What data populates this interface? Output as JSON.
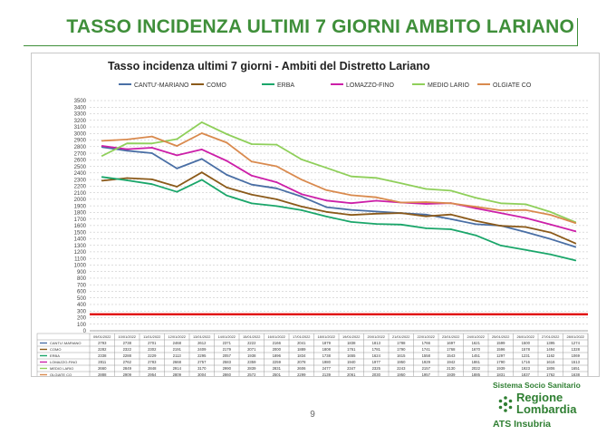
{
  "slide": {
    "title": "TASSO INCIDENZA ULTIMI 7 GIORNI AMBITO LARIANO",
    "page_number": "9",
    "logo": {
      "top": "Sistema Socio Sanitario",
      "region_line1": "Regione",
      "region_line2": "Lombardia",
      "agency": "ATS Insubria"
    }
  },
  "chart_data": {
    "type": "line",
    "title": "Tasso incidenza ultimi 7 giorni - Ambiti del Distretto Lariano",
    "ylim": [
      0,
      3500
    ],
    "ytick_step": 100,
    "grid": true,
    "legend_position": "top",
    "threshold": {
      "value": 250,
      "color": "#e00000"
    },
    "categories": [
      "09/01/2022",
      "10/01/2022",
      "11/01/2022",
      "12/01/2022",
      "13/01/2022",
      "14/01/2022",
      "15/01/2022",
      "16/01/2022",
      "17/01/2022",
      "18/01/2022",
      "19/01/2022",
      "20/01/2022",
      "21/01/2022",
      "22/01/2022",
      "23/01/2022",
      "24/01/2022",
      "25/01/2022",
      "26/01/2022",
      "27/01/2022",
      "28/01/2022"
    ],
    "series": [
      {
        "name": "CANTU'-MARIANO",
        "color": "#4a6fa5",
        "values": [
          2793,
          2738,
          2701,
          2468,
          2612,
          2371,
          2222,
          2166,
          2041,
          1879,
          1838,
          1813,
          1788,
          1766,
          1697,
          1621,
          1599,
          1500,
          1395,
          1274
        ]
      },
      {
        "name": "COMO",
        "color": "#8b5a1a",
        "values": [
          2282,
          2322,
          2302,
          2191,
          2409,
          2179,
          2071,
          2000,
          1889,
          1808,
          1761,
          1781,
          1790,
          1741,
          1768,
          1670,
          1596,
          1578,
          1494,
          1328
        ]
      },
      {
        "name": "ERBA",
        "color": "#1aa66a",
        "values": [
          2338,
          2288,
          2229,
          2113,
          2295,
          2057,
          1938,
          1896,
          1834,
          1738,
          1655,
          1624,
          1615,
          1558,
          1543,
          1451,
          1297,
          1231,
          1162,
          1069
        ]
      },
      {
        "name": "LOMAZZO-FINO",
        "color": "#cc1fa8",
        "values": [
          2811,
          2762,
          2783,
          2668,
          2757,
          2583,
          2359,
          2259,
          2078,
          1980,
          1940,
          1977,
          1950,
          1929,
          1942,
          1861,
          1790,
          1716,
          1616,
          1513
        ]
      },
      {
        "name": "MEDIO LARIO",
        "color": "#8fcf5a",
        "values": [
          2660,
          2849,
          2848,
          2914,
          3170,
          2990,
          2839,
          2831,
          2606,
          2477,
          2347,
          2325,
          2243,
          2157,
          2130,
          2022,
          1939,
          1923,
          1806,
          1651
        ]
      },
      {
        "name": "OLGIATE CO",
        "color": "#d98a4e",
        "values": [
          2888,
          2909,
          2954,
          2809,
          3004,
          2860,
          2572,
          2501,
          2299,
          2139,
          2061,
          2030,
          1950,
          1957,
          1939,
          1885,
          1831,
          1837,
          1762,
          1638
        ]
      }
    ]
  }
}
